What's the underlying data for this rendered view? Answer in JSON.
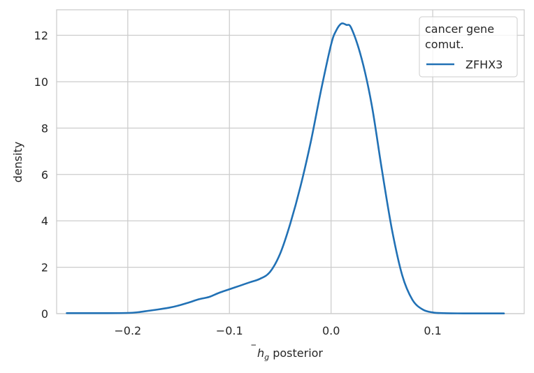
{
  "chart_data": {
    "type": "line",
    "xlabel_main": "h",
    "xlabel_sub": "g",
    "xlabel_rest": " posterior",
    "ylabel": "density",
    "xlim": [
      -0.27,
      0.19
    ],
    "ylim": [
      0,
      13.1
    ],
    "xticks": [
      -0.2,
      -0.1,
      0.0,
      0.1
    ],
    "xtick_labels": [
      "−0.2",
      "−0.1",
      "0.0",
      "0.1"
    ],
    "yticks": [
      0,
      2,
      4,
      6,
      8,
      10,
      12
    ],
    "ytick_labels": [
      "0",
      "2",
      "4",
      "6",
      "8",
      "10",
      "12"
    ],
    "grid": true,
    "legend": {
      "title_line1": "cancer gene",
      "title_line2": "comut.",
      "placement": "top-right"
    },
    "series": [
      {
        "name": "ZFHX3",
        "color": "#2171b5",
        "x": [
          -0.26,
          -0.24,
          -0.22,
          -0.2,
          -0.19,
          -0.18,
          -0.17,
          -0.16,
          -0.15,
          -0.14,
          -0.13,
          -0.12,
          -0.11,
          -0.1,
          -0.09,
          -0.08,
          -0.07,
          -0.06,
          -0.05,
          -0.04,
          -0.03,
          -0.02,
          -0.01,
          0.0,
          0.005,
          0.01,
          0.015,
          0.02,
          0.03,
          0.04,
          0.05,
          0.06,
          0.07,
          0.08,
          0.09,
          0.1,
          0.11,
          0.13,
          0.15,
          0.17
        ],
        "y": [
          0.02,
          0.02,
          0.02,
          0.03,
          0.06,
          0.12,
          0.18,
          0.25,
          0.35,
          0.48,
          0.62,
          0.72,
          0.9,
          1.05,
          1.2,
          1.35,
          1.5,
          1.8,
          2.6,
          3.9,
          5.5,
          7.4,
          9.6,
          11.6,
          12.2,
          12.5,
          12.45,
          12.3,
          11.0,
          9.0,
          6.2,
          3.6,
          1.65,
          0.6,
          0.18,
          0.05,
          0.02,
          0.01,
          0.01,
          0.01
        ]
      }
    ]
  }
}
